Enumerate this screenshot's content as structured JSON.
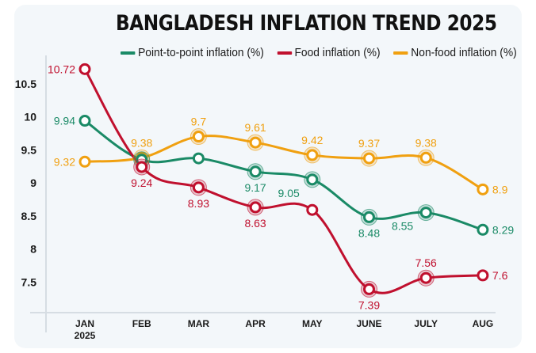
{
  "chart_data": {
    "type": "line",
    "title": "BANGLADESH INFLATION TREND 2025",
    "xlabel": "",
    "ylabel": "",
    "categories": [
      "JAN\n2025",
      "FEB",
      "MAR",
      "APR",
      "MAY",
      "JUNE",
      "JULY",
      "AUG"
    ],
    "category_lines": [
      [
        "JAN",
        "2025"
      ],
      [
        "FEB"
      ],
      [
        "MAR"
      ],
      [
        "APR"
      ],
      [
        "MAY"
      ],
      [
        "JUNE"
      ],
      [
        "JULY"
      ],
      [
        "AUG"
      ]
    ],
    "yticks": [
      7.5,
      8,
      8.5,
      9,
      9.5,
      10,
      10.5
    ],
    "ytick_labels": [
      "7.5",
      "8",
      "8.5",
      "9",
      "9.5",
      "10",
      "10.5"
    ],
    "ylim": [
      7.0,
      10.85
    ],
    "grid": false,
    "legend_position": "top-center",
    "series": [
      {
        "name": "Point-to-point inflation (%)",
        "color": "#1a8a66",
        "values": [
          9.94,
          9.35,
          9.37,
          9.17,
          9.05,
          8.48,
          8.55,
          8.29
        ],
        "labels": [
          "9.94",
          "",
          "",
          "9.17",
          "9.05",
          "8.48",
          "8.55",
          "8.29"
        ],
        "label_pos": [
          "left",
          "none",
          "none",
          "below",
          "left-below",
          "below",
          "left-below",
          "right"
        ],
        "halo": [
          false,
          true,
          false,
          true,
          true,
          true,
          true,
          false
        ]
      },
      {
        "name": "Food inflation (%)",
        "color": "#c0102e",
        "values": [
          10.72,
          9.24,
          8.93,
          8.63,
          8.59,
          7.39,
          7.56,
          7.6
        ],
        "labels": [
          "10.72",
          "9.24",
          "8.93",
          "8.63",
          "",
          "7.39",
          "7.56",
          "7.6"
        ],
        "label_pos": [
          "left",
          "below",
          "below",
          "below",
          "none",
          "below",
          "above",
          "right"
        ],
        "halo": [
          false,
          true,
          true,
          true,
          false,
          true,
          true,
          false
        ]
      },
      {
        "name": "Non-food inflation (%)",
        "color": "#f0a010",
        "values": [
          9.32,
          9.38,
          9.7,
          9.61,
          9.42,
          9.37,
          9.38,
          8.9
        ],
        "labels": [
          "9.32",
          "9.38",
          "9.7",
          "9.61",
          "9.42",
          "9.37",
          "9.38",
          "8.9"
        ],
        "label_pos": [
          "left",
          "above",
          "above",
          "above",
          "above",
          "above",
          "above",
          "right"
        ],
        "halo": [
          false,
          true,
          true,
          true,
          true,
          true,
          true,
          false
        ]
      }
    ]
  },
  "legend": [
    {
      "label": "Point-to-point inflation (%)",
      "color": "#1a8a66"
    },
    {
      "label": "Food inflation (%)",
      "color": "#c0102e"
    },
    {
      "label": "Non-food inflation (%)",
      "color": "#f0a010"
    }
  ]
}
